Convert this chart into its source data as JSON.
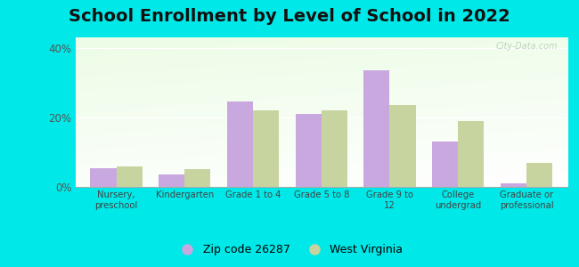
{
  "title": "School Enrollment by Level of School in 2022",
  "categories": [
    "Nursery,\npreschool",
    "Kindergarten",
    "Grade 1 to 4",
    "Grade 5 to 8",
    "Grade 9 to\n12",
    "College\nundergrad",
    "Graduate or\nprofessional"
  ],
  "zip_values": [
    5.5,
    3.5,
    24.5,
    21.0,
    33.5,
    13.0,
    1.0
  ],
  "wv_values": [
    6.0,
    5.0,
    22.0,
    22.0,
    23.5,
    19.0,
    7.0
  ],
  "zip_color": "#c9a8e0",
  "wv_color": "#c8d4a0",
  "background_outer": "#00e8e8",
  "title_fontsize": 14,
  "ylabel_ticks": [
    "0%",
    "20%",
    "40%"
  ],
  "yticks": [
    0,
    20,
    40
  ],
  "ylim": [
    0,
    43
  ],
  "bar_width": 0.38,
  "legend_zip_label": "Zip code 26287",
  "legend_wv_label": "West Virginia",
  "watermark": "City-Data.com"
}
